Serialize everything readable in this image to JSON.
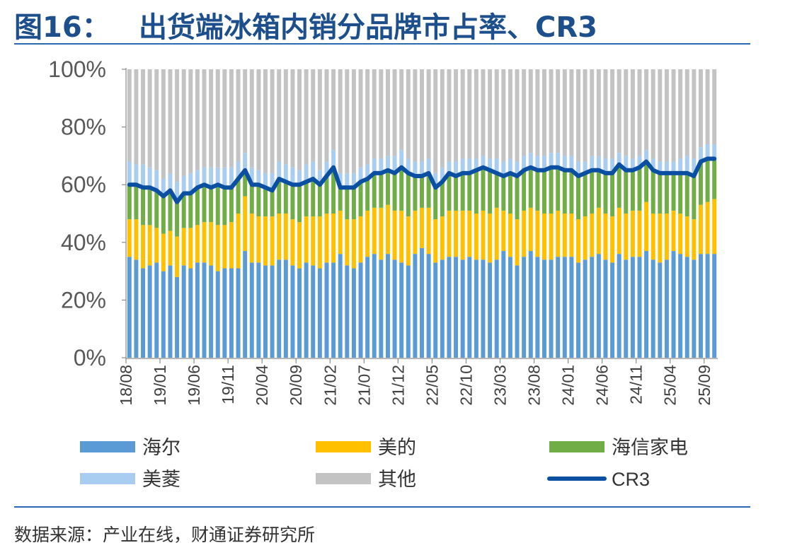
{
  "figure": {
    "number": "图16：",
    "title": "出货端冰箱内销分品牌市占率、CR3",
    "source": "数据来源：产业在线，财通证券研究所"
  },
  "colors": {
    "haier": "#5b9bd5",
    "midea": "#ffc000",
    "hisense": "#70ad47",
    "meiling": "#a9cdf0",
    "other": "#c3c3c3",
    "cr3": "#0b4fa2",
    "accent": "#1c4f8c"
  },
  "chart_data": {
    "type": "bar",
    "stacked": true,
    "normalized": true,
    "x": [
      "2018-08",
      "2018-09",
      "2018-10",
      "2018-11",
      "2018-12",
      "2019-01",
      "2019-02",
      "2019-03",
      "2019-04",
      "2019-05",
      "2019-06",
      "2019-07",
      "2019-08",
      "2019-09",
      "2019-10",
      "2019-11",
      "2019-12",
      "2020-01",
      "2020-02",
      "2020-03",
      "2020-04",
      "2020-05",
      "2020-06",
      "2020-07",
      "2020-08",
      "2020-09",
      "2020-10",
      "2020-11",
      "2020-12",
      "2021-01",
      "2021-02",
      "2021-03",
      "2021-04",
      "2021-05",
      "2021-06",
      "2021-07",
      "2021-08",
      "2021-09",
      "2021-10",
      "2021-11",
      "2021-12",
      "2022-01",
      "2022-02",
      "2022-03",
      "2022-04",
      "2022-05",
      "2022-06",
      "2022-07",
      "2022-08",
      "2022-09",
      "2022-10",
      "2022-11",
      "2022-12",
      "2023-01",
      "2023-02",
      "2023-03",
      "2023-04",
      "2023-05",
      "2023-06",
      "2023-07",
      "2023-08",
      "2023-09",
      "2023-10",
      "2023-11",
      "2023-12",
      "2024-01",
      "2024-02",
      "2024-03",
      "2024-04",
      "2024-05",
      "2024-06",
      "2024-07",
      "2024-08",
      "2024-09",
      "2024-10",
      "2024-11",
      "2024-12",
      "2025-01",
      "2025-02",
      "2025-03",
      "2025-04",
      "2025-05",
      "2025-06",
      "2025-07",
      "2025-08",
      "2025-09",
      "2025-10"
    ],
    "x_ticks": [
      "18/08",
      "19/01",
      "19/06",
      "19/11",
      "20/04",
      "20/09",
      "21/02",
      "21/07",
      "21/12",
      "22/05",
      "22/10",
      "23/03",
      "23/08",
      "24/01",
      "24/06",
      "24/11",
      "25/04",
      "25/09"
    ],
    "series": [
      {
        "name": "海尔",
        "key": "haier",
        "values": [
          35,
          34,
          31,
          32,
          33,
          30,
          32,
          28,
          32,
          31,
          33,
          33,
          32,
          30,
          31,
          31,
          31,
          37,
          33,
          33,
          32,
          32,
          34,
          34,
          32,
          31,
          33,
          32,
          31,
          33,
          33,
          36,
          32,
          31,
          33,
          35,
          36,
          34,
          36,
          34,
          33,
          32,
          36,
          38,
          36,
          33,
          34,
          35,
          35,
          34,
          35,
          34,
          34,
          33,
          34,
          37,
          35,
          32,
          35,
          37,
          35,
          34,
          34,
          35,
          35,
          35,
          33,
          34,
          35,
          36,
          34,
          33,
          36,
          34,
          35,
          35,
          37,
          34,
          33,
          34,
          37,
          36,
          35,
          34,
          36,
          36,
          36
        ]
      },
      {
        "name": "美的",
        "key": "midea",
        "values": [
          13,
          14,
          15,
          14,
          12,
          13,
          12,
          14,
          13,
          14,
          13,
          14,
          15,
          16,
          15,
          16,
          19,
          19,
          17,
          16,
          17,
          17,
          16,
          16,
          16,
          16,
          16,
          17,
          18,
          17,
          17,
          15,
          16,
          17,
          16,
          16,
          16,
          18,
          17,
          17,
          18,
          17,
          15,
          14,
          16,
          15,
          15,
          16,
          16,
          17,
          16,
          16,
          17,
          17,
          18,
          14,
          15,
          16,
          16,
          15,
          16,
          16,
          16,
          16,
          15,
          15,
          15,
          15,
          15,
          16,
          16,
          16,
          16,
          16,
          16,
          16,
          17,
          16,
          17,
          16,
          14,
          14,
          14,
          14,
          17,
          18,
          19
        ]
      },
      {
        "name": "海信家电",
        "key": "hisense",
        "values": [
          12,
          12,
          13,
          13,
          13,
          13,
          14,
          12,
          12,
          12,
          13,
          13,
          12,
          14,
          13,
          12,
          12,
          9,
          10,
          11,
          10,
          9,
          12,
          11,
          12,
          13,
          12,
          13,
          11,
          13,
          16,
          8,
          11,
          11,
          12,
          11,
          12,
          12,
          12,
          13,
          15,
          15,
          12,
          11,
          12,
          11,
          12,
          13,
          12,
          13,
          13,
          15,
          15,
          15,
          12,
          12,
          14,
          15,
          14,
          14,
          14,
          15,
          16,
          15,
          15,
          15,
          15,
          15,
          15,
          13,
          14,
          15,
          15,
          15,
          14,
          15,
          14,
          15,
          14,
          14,
          13,
          14,
          15,
          15,
          15,
          15,
          14
        ]
      },
      {
        "name": "美菱",
        "key": "meiling",
        "values": [
          8,
          7,
          8,
          7,
          7,
          6,
          6,
          7,
          6,
          7,
          6,
          6,
          7,
          6,
          7,
          7,
          6,
          6,
          6,
          5,
          5,
          6,
          6,
          6,
          6,
          5,
          6,
          6,
          5,
          5,
          6,
          5,
          5,
          5,
          5,
          5,
          5,
          5,
          5,
          6,
          6,
          5,
          5,
          5,
          5,
          5,
          5,
          4,
          5,
          5,
          5,
          4,
          4,
          4,
          5,
          5,
          5,
          5,
          5,
          5,
          5,
          5,
          5,
          5,
          5,
          5,
          5,
          4,
          5,
          5,
          5,
          5,
          4,
          5,
          4,
          4,
          4,
          4,
          4,
          4,
          4,
          5,
          6,
          6,
          5,
          5,
          5
        ]
      },
      {
        "name": "其他",
        "key": "other",
        "values": [
          32,
          33,
          33,
          34,
          35,
          38,
          36,
          39,
          37,
          36,
          35,
          34,
          34,
          34,
          34,
          34,
          32,
          29,
          34,
          35,
          36,
          36,
          32,
          33,
          34,
          35,
          33,
          32,
          35,
          32,
          28,
          36,
          36,
          36,
          34,
          33,
          31,
          31,
          30,
          30,
          28,
          31,
          32,
          32,
          31,
          36,
          34,
          32,
          32,
          31,
          31,
          31,
          30,
          31,
          31,
          32,
          31,
          32,
          30,
          29,
          30,
          30,
          29,
          29,
          30,
          30,
          32,
          32,
          30,
          30,
          31,
          31,
          29,
          30,
          31,
          30,
          28,
          31,
          32,
          32,
          32,
          31,
          30,
          31,
          27,
          26,
          26
        ]
      }
    ],
    "line": {
      "name": "CR3",
      "key": "cr3"
    },
    "ylim": [
      0,
      100
    ],
    "y_ticks": [
      "0%",
      "20%",
      "40%",
      "60%",
      "80%",
      "100%"
    ],
    "grid": false,
    "legend_position": "bottom"
  }
}
